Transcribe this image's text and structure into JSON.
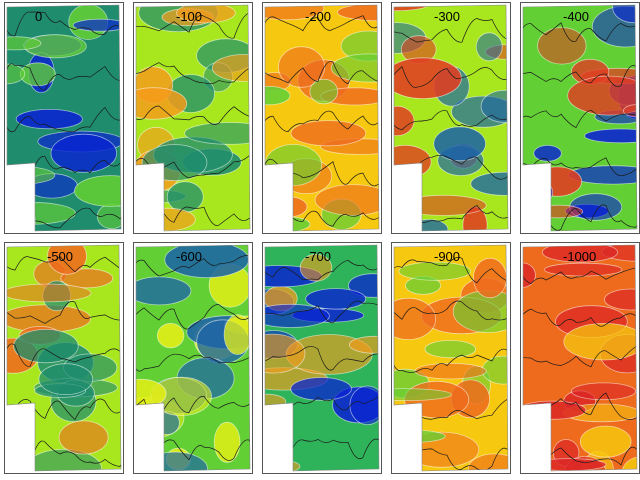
{
  "figure": {
    "panel_count": 10,
    "layout": "2 rows x 5 columns",
    "palette": [
      "#0a23d2",
      "#1c64a6",
      "#1f8c6d",
      "#2fb35a",
      "#62cf35",
      "#a8e61e",
      "#e6ef16",
      "#f6c80f",
      "#f59b1c",
      "#ee6b1e",
      "#e03d22",
      "#dc2626"
    ]
  },
  "chart_data": [
    {
      "type": "heatmap",
      "label": "0",
      "tone": 0.2,
      "variation": 0.3,
      "colors": [
        "#0a23d2",
        "#1f8c6d",
        "#62cf35"
      ]
    },
    {
      "type": "heatmap",
      "label": "-100",
      "tone": 0.5,
      "variation": 0.35,
      "colors": [
        "#1f8c6d",
        "#a8e61e",
        "#f59b1c"
      ]
    },
    {
      "type": "heatmap",
      "label": "-200",
      "tone": 0.78,
      "variation": 0.3,
      "colors": [
        "#62cf35",
        "#f6c80f",
        "#ee6b1e"
      ]
    },
    {
      "type": "heatmap",
      "label": "-300",
      "tone": 0.72,
      "variation": 0.4,
      "colors": [
        "#1c64a6",
        "#a8e61e",
        "#e03d22"
      ]
    },
    {
      "type": "heatmap",
      "label": "-400",
      "tone": 0.6,
      "variation": 0.45,
      "colors": [
        "#0a23d2",
        "#62cf35",
        "#e03d22"
      ]
    },
    {
      "type": "heatmap",
      "label": "-500",
      "tone": 0.5,
      "variation": 0.35,
      "colors": [
        "#1f8c6d",
        "#a8e61e",
        "#ee6b1e"
      ]
    },
    {
      "type": "heatmap",
      "label": "-600",
      "tone": 0.45,
      "variation": 0.3,
      "colors": [
        "#1c64a6",
        "#62cf35",
        "#e6ef16"
      ]
    },
    {
      "type": "heatmap",
      "label": "-700",
      "tone": 0.4,
      "variation": 0.35,
      "colors": [
        "#0a23d2",
        "#2fb35a",
        "#f59b1c"
      ]
    },
    {
      "type": "heatmap",
      "label": "-900",
      "tone": 0.7,
      "variation": 0.2,
      "colors": [
        "#62cf35",
        "#f6c80f",
        "#ee6b1e"
      ]
    },
    {
      "type": "heatmap",
      "label": "-1000",
      "tone": 0.88,
      "variation": 0.25,
      "colors": [
        "#f6c80f",
        "#ee6b1e",
        "#dc2626"
      ]
    }
  ]
}
